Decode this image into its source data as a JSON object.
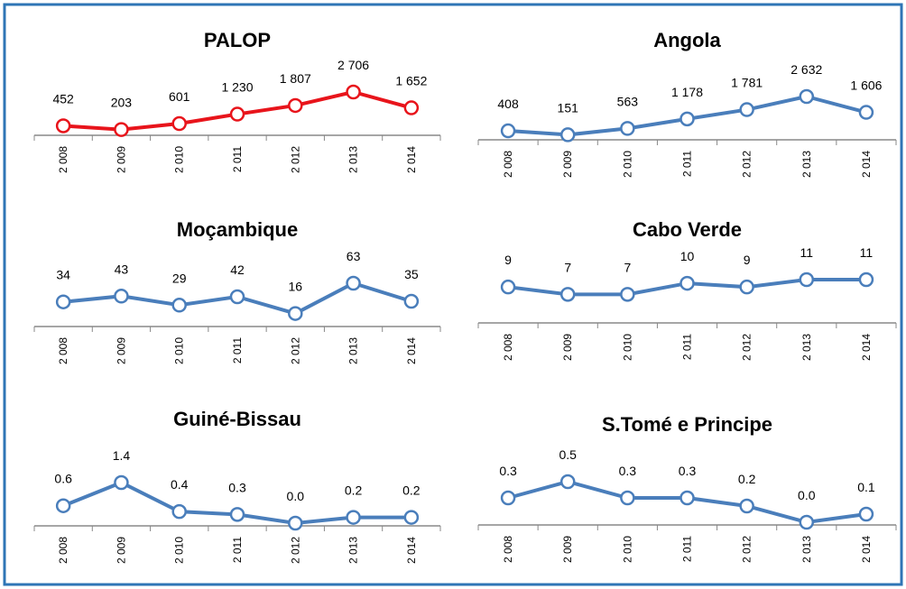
{
  "chart_data": [
    {
      "type": "line",
      "title": "PALOP",
      "categories": [
        "2 008",
        "2 009",
        "2 010",
        "2 011",
        "2 012",
        "2 013",
        "2 014"
      ],
      "series": [
        {
          "color": "#e8141b",
          "values": [
            452,
            203,
            601,
            1230,
            1807,
            2706,
            1652
          ],
          "value_labels": [
            "452",
            "203",
            "601",
            "1 230",
            "1 807",
            "2 706",
            "1 652"
          ]
        }
      ]
    },
    {
      "type": "line",
      "title": "Angola",
      "categories": [
        "2 008",
        "2 009",
        "2 010",
        "2 011",
        "2 012",
        "2 013",
        "2 014"
      ],
      "series": [
        {
          "color": "#4a7ebb",
          "values": [
            408,
            151,
            563,
            1178,
            1781,
            2632,
            1606
          ],
          "value_labels": [
            "408",
            "151",
            "563",
            "1 178",
            "1 781",
            "2 632",
            "1 606"
          ]
        }
      ]
    },
    {
      "type": "line",
      "title": "Moçambique",
      "categories": [
        "2 008",
        "2 009",
        "2 010",
        "2 011",
        "2 012",
        "2 013",
        "2 014"
      ],
      "series": [
        {
          "color": "#4a7ebb",
          "values": [
            34,
            43,
            29,
            42,
            16,
            63,
            35
          ]
        }
      ]
    },
    {
      "type": "line",
      "title": "Cabo Verde",
      "categories": [
        "2 008",
        "2 009",
        "2 010",
        "2 011",
        "2 012",
        "2 013",
        "2 014"
      ],
      "series": [
        {
          "color": "#4a7ebb",
          "values": [
            9,
            7,
            7,
            10,
            9,
            11,
            11
          ]
        }
      ]
    },
    {
      "type": "line",
      "title": "Guiné-Bissau",
      "categories": [
        "2 008",
        "2 009",
        "2 010",
        "2 011",
        "2 012",
        "2 013",
        "2 014"
      ],
      "series": [
        {
          "color": "#4a7ebb",
          "values": [
            0.6,
            1.4,
            0.4,
            0.3,
            0.0,
            0.2,
            0.2
          ],
          "value_labels": [
            "0.6",
            "1.4",
            "0.4",
            "0.3",
            "0.0",
            "0.2",
            "0.2"
          ]
        }
      ]
    },
    {
      "type": "line",
      "title": "S.Tomé e Principe",
      "categories": [
        "2 008",
        "2 009",
        "2 010",
        "2 011",
        "2 012",
        "2 013",
        "2 014"
      ],
      "series": [
        {
          "color": "#4a7ebb",
          "values": [
            0.3,
            0.5,
            0.3,
            0.3,
            0.2,
            0.0,
            0.1
          ],
          "value_labels": [
            "0.3",
            "0.5",
            "0.3",
            "0.3",
            "0.2",
            "0.0",
            "0.1"
          ]
        }
      ]
    }
  ]
}
